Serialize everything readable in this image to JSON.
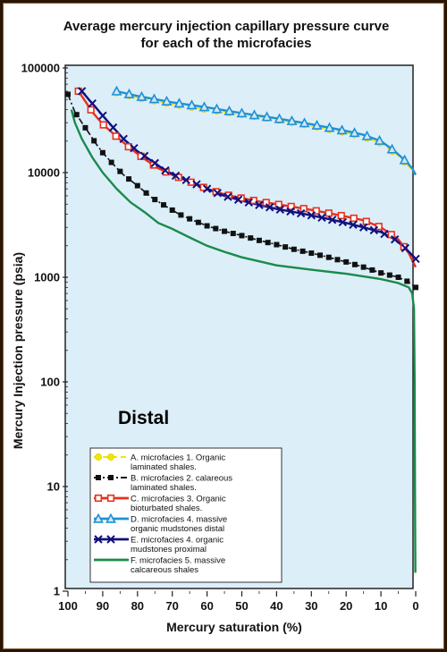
{
  "chart_data": {
    "type": "line",
    "title": [
      "Average mercury injection capillary pressure curve",
      "for each of the microfacies"
    ],
    "xlabel": "Mercury saturation (%)",
    "ylabel": "Mercury Injection pressure (psia)",
    "xlim": [
      100,
      0
    ],
    "x_reversed": true,
    "ylim": [
      1,
      100000
    ],
    "y_scale": "log",
    "x_ticks": [
      "100",
      "90",
      "80",
      "70",
      "60",
      "50",
      "40",
      "30",
      "20",
      "10",
      "0"
    ],
    "y_ticks": [
      "1",
      "10",
      "100",
      "1000",
      "10000",
      "100000"
    ],
    "annotation": "Distal",
    "plot_background": "#dceef8",
    "legend_position": "bottom-left",
    "series": [
      {
        "name_lines": [
          "A. microfacies 1.  Organic",
          "laminated shales."
        ],
        "color": "#f2e600",
        "marker": "circle",
        "dash": "dashed",
        "points": [
          [
            86,
            58000
          ],
          [
            80,
            52000
          ],
          [
            70,
            45000
          ],
          [
            60,
            40000
          ],
          [
            50,
            36000
          ],
          [
            40,
            32000
          ],
          [
            30,
            28000
          ],
          [
            20,
            24000
          ],
          [
            15,
            22000
          ],
          [
            10,
            19000
          ],
          [
            5,
            14500
          ],
          [
            2,
            11500
          ],
          [
            0,
            9500
          ]
        ]
      },
      {
        "name_lines": [
          "B. microfacies 2.  calareous",
          "laminated shales."
        ],
        "color": "#111111",
        "marker": "square",
        "dash": "dashdot",
        "points": [
          [
            100,
            56000
          ],
          [
            99,
            46000
          ],
          [
            98,
            38000
          ],
          [
            96,
            30000
          ],
          [
            94,
            24000
          ],
          [
            92,
            19000
          ],
          [
            90,
            15500
          ],
          [
            87,
            12000
          ],
          [
            84,
            9500
          ],
          [
            80,
            7500
          ],
          [
            76,
            5800
          ],
          [
            72,
            4800
          ],
          [
            68,
            4000
          ],
          [
            64,
            3500
          ],
          [
            60,
            3100
          ],
          [
            55,
            2750
          ],
          [
            50,
            2500
          ],
          [
            45,
            2250
          ],
          [
            40,
            2050
          ],
          [
            35,
            1850
          ],
          [
            30,
            1700
          ],
          [
            25,
            1550
          ],
          [
            20,
            1400
          ],
          [
            15,
            1250
          ],
          [
            10,
            1100
          ],
          [
            5,
            1000
          ],
          [
            2,
            900
          ],
          [
            0,
            800
          ]
        ]
      },
      {
        "name_lines": [
          "C. microfacies 3.  Organic",
          "bioturbated shales."
        ],
        "color": "#e8301c",
        "marker": "square-open",
        "dash": "solid",
        "points": [
          [
            97,
            60000
          ],
          [
            95,
            48000
          ],
          [
            93,
            38000
          ],
          [
            90,
            29000
          ],
          [
            86,
            22000
          ],
          [
            82,
            17000
          ],
          [
            78,
            13500
          ],
          [
            74,
            11000
          ],
          [
            70,
            9500
          ],
          [
            65,
            8200
          ],
          [
            60,
            7000
          ],
          [
            55,
            6200
          ],
          [
            50,
            5700
          ],
          [
            45,
            5300
          ],
          [
            40,
            5000
          ],
          [
            35,
            4700
          ],
          [
            30,
            4400
          ],
          [
            25,
            4100
          ],
          [
            20,
            3800
          ],
          [
            15,
            3500
          ],
          [
            10,
            3000
          ],
          [
            5,
            2300
          ],
          [
            2,
            1700
          ],
          [
            0,
            1250
          ]
        ]
      },
      {
        "name_lines": [
          "D. microfacies 4.  massive",
          "organic mudstones distal"
        ],
        "color": "#1e90d6",
        "marker": "triangle-open",
        "dash": "solid",
        "points": [
          [
            86,
            60000
          ],
          [
            80,
            54000
          ],
          [
            70,
            47000
          ],
          [
            60,
            42000
          ],
          [
            50,
            37000
          ],
          [
            40,
            33000
          ],
          [
            30,
            29000
          ],
          [
            20,
            25000
          ],
          [
            15,
            23000
          ],
          [
            10,
            20000
          ],
          [
            6,
            16000
          ],
          [
            3,
            13000
          ],
          [
            1,
            11000
          ],
          [
            0,
            9500
          ]
        ]
      },
      {
        "name_lines": [
          "E. microfacies 4.  organic",
          "mudstones proximal"
        ],
        "color": "#101080",
        "marker": "x",
        "dash": "solid",
        "points": [
          [
            96,
            60000
          ],
          [
            94,
            50000
          ],
          [
            92,
            42000
          ],
          [
            90,
            35000
          ],
          [
            87,
            27000
          ],
          [
            84,
            21000
          ],
          [
            80,
            16000
          ],
          [
            76,
            13000
          ],
          [
            72,
            10500
          ],
          [
            68,
            9000
          ],
          [
            64,
            8000
          ],
          [
            60,
            7000
          ],
          [
            55,
            6000
          ],
          [
            50,
            5400
          ],
          [
            45,
            4900
          ],
          [
            40,
            4500
          ],
          [
            35,
            4200
          ],
          [
            30,
            3900
          ],
          [
            25,
            3600
          ],
          [
            20,
            3300
          ],
          [
            15,
            3000
          ],
          [
            10,
            2700
          ],
          [
            6,
            2300
          ],
          [
            3,
            1900
          ],
          [
            0,
            1500
          ]
        ]
      },
      {
        "name_lines": [
          "F. microfacies 5.  massive",
          "calcareous shales"
        ],
        "color": "#1a8a4a",
        "marker": "none",
        "dash": "solid",
        "points": [
          [
            99,
            40000
          ],
          [
            98,
            30000
          ],
          [
            96,
            21000
          ],
          [
            93,
            14000
          ],
          [
            90,
            10000
          ],
          [
            86,
            7000
          ],
          [
            82,
            5200
          ],
          [
            78,
            4200
          ],
          [
            74,
            3300
          ],
          [
            70,
            2900
          ],
          [
            65,
            2400
          ],
          [
            60,
            2000
          ],
          [
            55,
            1750
          ],
          [
            50,
            1550
          ],
          [
            45,
            1420
          ],
          [
            40,
            1300
          ],
          [
            30,
            1180
          ],
          [
            20,
            1080
          ],
          [
            10,
            960
          ],
          [
            5,
            880
          ],
          [
            2,
            800
          ],
          [
            1,
            700
          ],
          [
            0.5,
            500
          ],
          [
            0.3,
            100
          ],
          [
            0.2,
            10
          ],
          [
            0.1,
            1.5
          ]
        ]
      }
    ]
  }
}
